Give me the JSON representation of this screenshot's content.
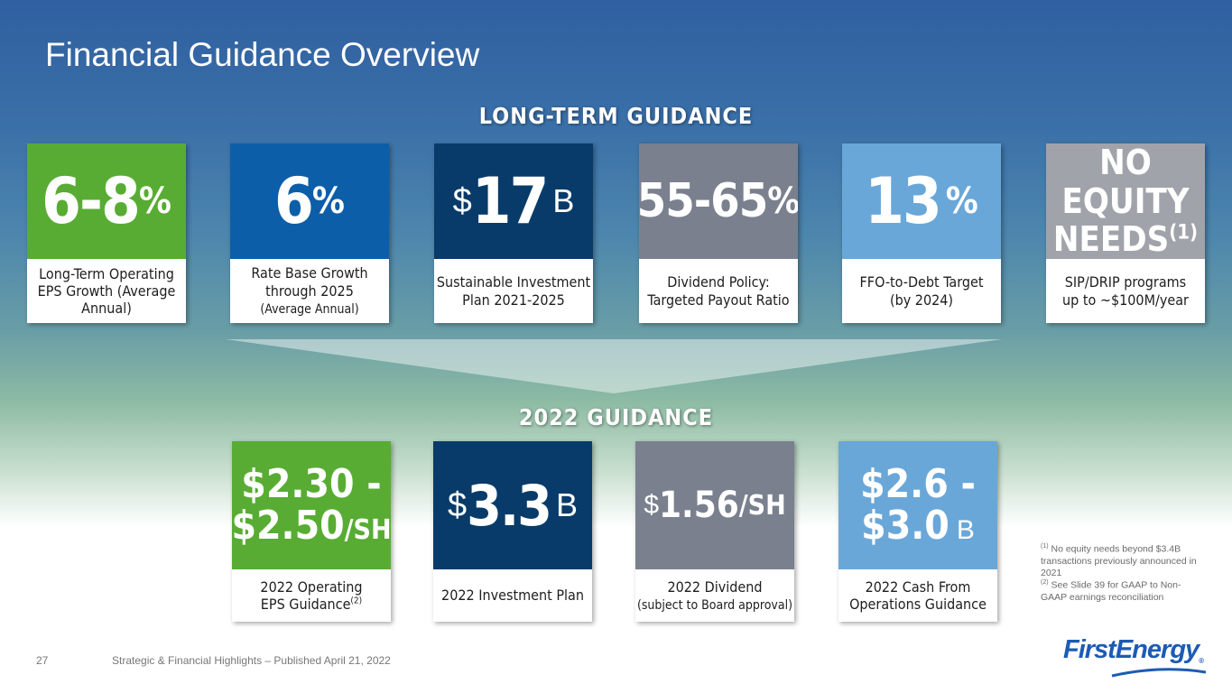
{
  "title": "Financial Guidance Overview",
  "long_term": {
    "heading": "LONG-TERM GUIDANCE",
    "cards": [
      {
        "value": "6-8",
        "suffix": "%",
        "label_a": "Long-Term Operating",
        "label_b": "EPS Growth (Average Annual)",
        "color": "#58ac33"
      },
      {
        "value": "6",
        "suffix": "%",
        "label_a": "Rate Base Growth",
        "label_b": "through 2025",
        "label_c": "(Average Annual)",
        "color": "#0d5ea8"
      },
      {
        "prefix": "$",
        "value": "17",
        "suffix": "B",
        "label_a": "Sustainable Investment",
        "label_b": "Plan 2021-2025",
        "color": "#083b69"
      },
      {
        "value": "55-65",
        "suffix": "%",
        "label_a": "Dividend Policy:",
        "label_b": "Targeted Payout Ratio",
        "color": "#7a808e"
      },
      {
        "value": "13",
        "suffix": "%",
        "label_a": "FFO-to-Debt Target",
        "label_b": "(by 2024)",
        "color": "#6aa7d9"
      },
      {
        "line1": "NO EQUITY",
        "line2": "NEEDS",
        "sup": "(1)",
        "label_a": "SIP/DRIP programs",
        "label_b": "up to ~$100M/year",
        "color": "#a0a3aa"
      }
    ]
  },
  "guidance_2022": {
    "heading": "2022 GUIDANCE",
    "cards": [
      {
        "line1": "$2.30 -",
        "line2": "$2.50",
        "suffix": "/SH",
        "label_a": "2022 Operating",
        "label_b": "EPS Guidance",
        "sup": "(2)",
        "color": "#58ac33"
      },
      {
        "prefix": "$",
        "value": "3.3",
        "suffix": "B",
        "label_a": "2022 Investment Plan",
        "color": "#083b69"
      },
      {
        "prefix": "$",
        "value": "1.56",
        "suffix": "/SH",
        "label_a": "2022 Dividend",
        "label_b": "(subject to Board approval)",
        "color": "#7a808e"
      },
      {
        "line1": "$2.6 -",
        "line2": "$3.0",
        "suffix": "B",
        "label_a": "2022 Cash From",
        "label_b": "Operations Guidance",
        "color": "#6aa7d9"
      }
    ]
  },
  "footnotes": {
    "n1_mark": "(1)",
    "n1": "No equity needs beyond $3.4B transactions previously announced in 2021",
    "n2_mark": "(2)",
    "n2": "See Slide 39 for GAAP to Non-GAAP earnings reconciliation"
  },
  "footer": {
    "page": "27",
    "text": "Strategic & Financial Highlights – Published April 21, 2022",
    "logo": "FirstEnergy",
    "logo_mark": "®"
  }
}
